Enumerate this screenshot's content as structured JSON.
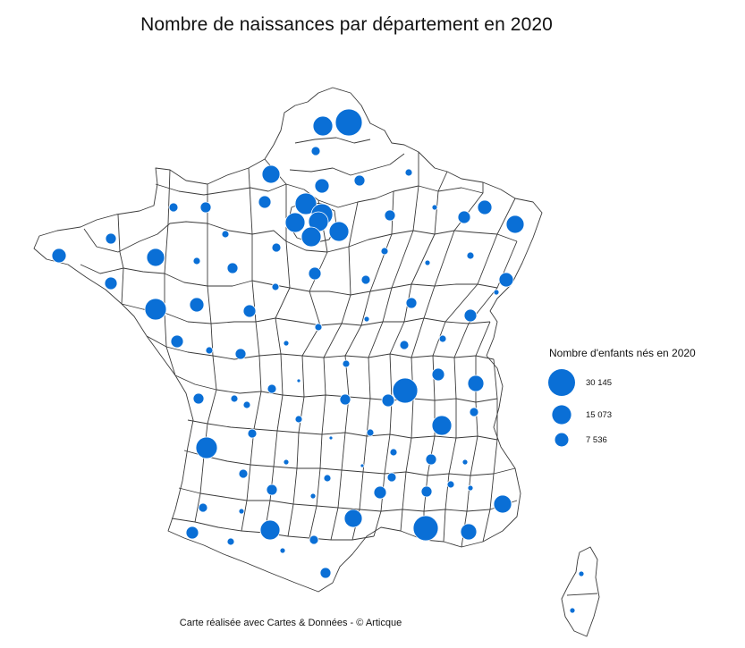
{
  "title": "Nombre de naissances par département en 2020",
  "legend": {
    "title": "Nombre d'enfants nés en 2020",
    "items": [
      {
        "label": "30 145",
        "value": 30145
      },
      {
        "label": "15 073",
        "value": 15073
      },
      {
        "label": "7 536",
        "value": 7536
      }
    ]
  },
  "credit": "Carte réalisée avec Cartes & Données - © Articque",
  "colors": {
    "bubble": "#0a6fd6",
    "bubble_stroke": "#ffffff",
    "border": "#3a3a3a",
    "land": "#ffffff"
  },
  "chart_data": {
    "type": "proportional-symbol-map",
    "region": "France (départements)",
    "measure": "Nombre d'enfants nés en 2020",
    "max_value": 30145
  }
}
